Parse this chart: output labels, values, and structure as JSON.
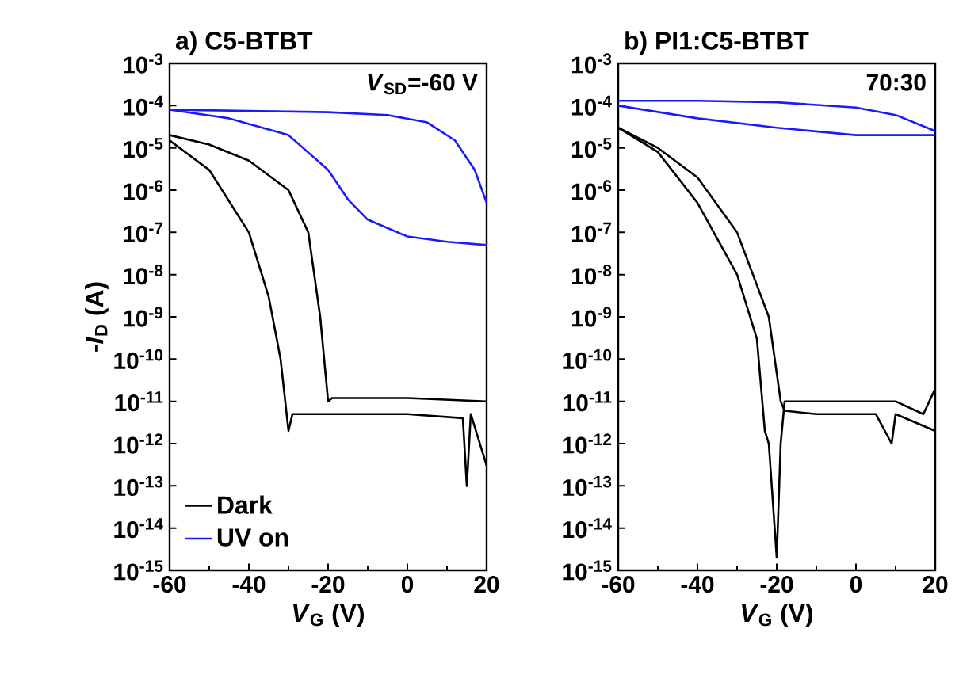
{
  "chart_data": [
    {
      "type": "line",
      "title": "a) C5-BTBT",
      "xlabel": "*V*$_{G}$ (V)",
      "ylabel": "-*I*$_{D}$ (A)",
      "annotations": [
        "*V*$_{SD}$=-60 V"
      ],
      "log": "y",
      "legend": "bottom left",
      "marker": "none",
      "line_style": "solid",
      "xlim": [
        -60,
        20
      ],
      "xticks": [
        -60,
        -40,
        -20,
        0,
        20
      ],
      "ylim": [
        1e-15,
        0.001
      ],
      "yticks": [
        {
          "value": 1e-15,
          "label": "10$^{-15}$"
        },
        {
          "value": 1e-14,
          "label": "10$^{-14}$"
        },
        {
          "value": 1e-13,
          "label": "10$^{-13}$"
        },
        {
          "value": 1e-12,
          "label": "10$^{-12}$"
        },
        {
          "value": 1e-11,
          "label": "10$^{-11}$"
        },
        {
          "value": 1e-10,
          "label": "10$^{-10}$"
        },
        {
          "value": 1e-09,
          "label": "10$^{-9}$"
        },
        {
          "value": 1e-08,
          "label": "10$^{-8}$"
        },
        {
          "value": 1e-07,
          "label": "10$^{-7}$"
        },
        {
          "value": 1e-06,
          "label": "10$^{-6}$"
        },
        {
          "value": 1e-05,
          "label": "10$^{-5}$"
        },
        {
          "value": 0.0001,
          "label": "10$^{-4}$"
        },
        {
          "value": 0.001,
          "label": "10$^{-3}$"
        }
      ],
      "series": [
        {
          "name": "Dark",
          "color": "#000000",
          "x": [
            -60,
            -50,
            -40,
            -35,
            -32,
            -30,
            -29,
            -20,
            0,
            14,
            15,
            16,
            20
          ],
          "values": [
            1.5e-05,
            3e-06,
            1e-07,
            3e-09,
            1e-10,
            2e-12,
            5e-12,
            5e-12,
            5e-12,
            4e-12,
            1e-13,
            5e-12,
            3e-13
          ]
        },
        {
          "color": "#000000",
          "x": [
            -60,
            -50,
            -40,
            -30,
            -25,
            -22,
            -20,
            -19,
            0,
            20
          ],
          "values": [
            2e-05,
            1.2e-05,
            5e-06,
            1e-06,
            1e-07,
            1e-09,
            1e-11,
            1.2e-11,
            1.2e-11,
            1e-11
          ]
        },
        {
          "name": "UV on",
          "color": "#1a1aff",
          "x": [
            -60,
            -40,
            -20,
            -5,
            5,
            12,
            17,
            20
          ],
          "values": [
            8e-05,
            7.5e-05,
            7e-05,
            6e-05,
            4e-05,
            1.5e-05,
            3e-06,
            5e-07
          ]
        },
        {
          "color": "#1a1aff",
          "x": [
            -60,
            -45,
            -30,
            -20,
            -15,
            -10,
            0,
            10,
            20
          ],
          "values": [
            8e-05,
            5e-05,
            2e-05,
            3e-06,
            6e-07,
            2e-07,
            8e-08,
            6e-08,
            5e-08
          ]
        }
      ]
    },
    {
      "type": "line",
      "title": "b) PI1:C5-BTBT",
      "xlabel": "*V*$_{G}$ (V)",
      "annotations": [
        "70:30"
      ],
      "log": "y",
      "marker": "none",
      "line_style": "solid",
      "xlim": [
        -60,
        20
      ],
      "xticks": [
        -60,
        -40,
        -20,
        0,
        20
      ],
      "ylim": [
        1e-15,
        0.001
      ],
      "yticks": [
        {
          "value": 1e-15,
          "label": "10$^{-15}$"
        },
        {
          "value": 1e-14,
          "label": "10$^{-14}$"
        },
        {
          "value": 1e-13,
          "label": "10$^{-13}$"
        },
        {
          "value": 1e-12,
          "label": "10$^{-12}$"
        },
        {
          "value": 1e-11,
          "label": "10$^{-11}$"
        },
        {
          "value": 1e-10,
          "label": "10$^{-10}$"
        },
        {
          "value": 1e-09,
          "label": "10$^{-9}$"
        },
        {
          "value": 1e-08,
          "label": "10$^{-8}$"
        },
        {
          "value": 1e-07,
          "label": "10$^{-7}$"
        },
        {
          "value": 1e-06,
          "label": "10$^{-6}$"
        },
        {
          "value": 1e-05,
          "label": "10$^{-5}$"
        },
        {
          "value": 0.0001,
          "label": "10$^{-4}$"
        },
        {
          "value": 0.001,
          "label": "10$^{-3}$"
        }
      ],
      "series": [
        {
          "color": "#000000",
          "x": [
            -60,
            -50,
            -40,
            -30,
            -25,
            -23,
            -22,
            -20,
            -19,
            -18,
            0,
            10,
            17,
            20
          ],
          "values": [
            3e-05,
            8e-06,
            5e-07,
            1e-08,
            3e-10,
            2e-12,
            1e-12,
            2e-15,
            1e-12,
            1e-11,
            1e-11,
            1e-11,
            5e-12,
            2e-11
          ]
        },
        {
          "color": "#000000",
          "x": [
            -60,
            -50,
            -40,
            -30,
            -22,
            -19,
            -18,
            -10,
            5,
            9,
            10,
            20
          ],
          "values": [
            3e-05,
            1e-05,
            2e-06,
            1e-07,
            1e-09,
            1e-11,
            6e-12,
            5e-12,
            5e-12,
            1e-12,
            5e-12,
            2e-12
          ]
        },
        {
          "color": "#1a1aff",
          "x": [
            -60,
            -40,
            -20,
            0,
            10,
            20
          ],
          "values": [
            0.00013,
            0.00013,
            0.00012,
            9e-05,
            6e-05,
            2.5e-05
          ]
        },
        {
          "color": "#1a1aff",
          "x": [
            -60,
            -40,
            -20,
            0,
            10,
            20
          ],
          "values": [
            0.0001,
            5e-05,
            3e-05,
            2e-05,
            2e-05,
            2e-05
          ]
        }
      ]
    }
  ]
}
